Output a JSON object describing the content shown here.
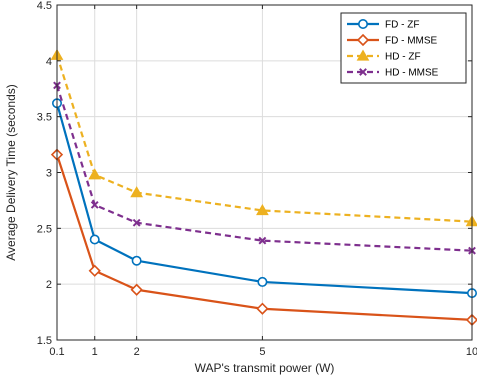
{
  "chart_data": {
    "type": "line",
    "xlabel": "WAP's transmit power (W)",
    "ylabel": "Average Delivery Time (seconds)",
    "xlim": [
      0.1,
      10
    ],
    "ylim": [
      1.5,
      4.5
    ],
    "x_ticks": [
      0.1,
      1,
      2,
      5,
      10
    ],
    "x_tick_labels": [
      "0.1",
      "1",
      "2",
      "5",
      "10"
    ],
    "y_ticks": [
      1.5,
      2,
      2.5,
      3,
      3.5,
      4,
      4.5
    ],
    "y_tick_labels": [
      "1.5",
      "2",
      "2.5",
      "3",
      "3.5",
      "4",
      "4.5"
    ],
    "grid": true,
    "legend_position": "top-right",
    "x": [
      0.1,
      1,
      2,
      5,
      10
    ],
    "series": [
      {
        "name": "FD - ZF",
        "values": [
          3.62,
          2.4,
          2.21,
          2.02,
          1.92
        ],
        "color": "#0072bd",
        "marker": "circle",
        "dash": "solid"
      },
      {
        "name": "FD - MMSE",
        "values": [
          3.16,
          2.12,
          1.95,
          1.78,
          1.68
        ],
        "color": "#d95319",
        "marker": "diamond",
        "dash": "solid"
      },
      {
        "name": "HD - ZF",
        "values": [
          4.05,
          2.98,
          2.82,
          2.66,
          2.56
        ],
        "color": "#edb120",
        "marker": "triangle",
        "dash": "dashed"
      },
      {
        "name": "HD - MMSE",
        "values": [
          3.78,
          2.71,
          2.55,
          2.39,
          2.3
        ],
        "color": "#7e2f8e",
        "marker": "x",
        "dash": "dashed"
      }
    ]
  }
}
